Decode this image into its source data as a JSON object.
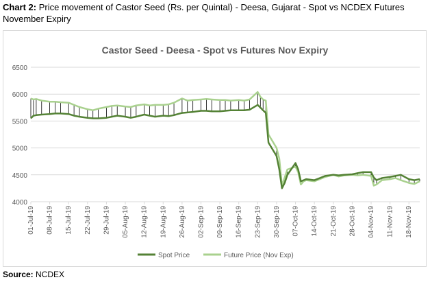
{
  "caption": {
    "label": "Chart 2:",
    "text": "Price movement of Castor Seed (Rs. per Quintal) - Deesa, Gujarat - Spot vs NCDEX Futures November Expiry"
  },
  "source": {
    "label": "Source:",
    "text": "NCDEX"
  },
  "colors": {
    "spot": "#548235",
    "future": "#a9d18e",
    "grid": "#d9d9d9",
    "axis_text": "#595959",
    "title": "#595959"
  },
  "chart_data": {
    "type": "line",
    "title": "Castor Seed - Deesa - Spot vs Futures Nov Expiry",
    "ylim": [
      4000,
      6500
    ],
    "yticks": [
      4000,
      4500,
      5000,
      5500,
      6000,
      6500
    ],
    "grid": true,
    "legend_position": "bottom",
    "xtick_labels": [
      "01-Jul-19",
      "08-Jul-19",
      "15-Jul-19",
      "22-Jul-19",
      "29-Jul-19",
      "05-Aug-19",
      "12-Aug-19",
      "19-Aug-19",
      "26-Aug-19",
      "02-Sep-19",
      "09-Sep-19",
      "16-Sep-19",
      "23-Sep-19",
      "30-Sep-19",
      "07-Oct-19",
      "14-Oct-19",
      "21-Oct-19",
      "28-Oct-19",
      "04-Nov-19",
      "11-Nov-19",
      "18-Nov-19"
    ],
    "x": [
      "01-Jul-19",
      "02-Jul-19",
      "03-Jul-19",
      "05-Jul-19",
      "08-Jul-19",
      "10-Jul-19",
      "12-Jul-19",
      "15-Jul-19",
      "17-Jul-19",
      "19-Jul-19",
      "22-Jul-19",
      "24-Jul-19",
      "26-Jul-19",
      "29-Jul-19",
      "31-Jul-19",
      "02-Aug-19",
      "05-Aug-19",
      "07-Aug-19",
      "09-Aug-19",
      "12-Aug-19",
      "14-Aug-19",
      "16-Aug-19",
      "19-Aug-19",
      "21-Aug-19",
      "23-Aug-19",
      "26-Aug-19",
      "28-Aug-19",
      "30-Aug-19",
      "02-Sep-19",
      "04-Sep-19",
      "06-Sep-19",
      "09-Sep-19",
      "11-Sep-19",
      "13-Sep-19",
      "16-Sep-19",
      "18-Sep-19",
      "20-Sep-19",
      "23-Sep-19",
      "24-Sep-19",
      "25-Sep-19",
      "26-Sep-19",
      "27-Sep-19",
      "30-Sep-19",
      "01-Oct-19",
      "02-Oct-19",
      "03-Oct-19",
      "04-Oct-19",
      "07-Oct-19",
      "08-Oct-19",
      "09-Oct-19",
      "10-Oct-19",
      "11-Oct-19",
      "14-Oct-19",
      "16-Oct-19",
      "18-Oct-19",
      "21-Oct-19",
      "23-Oct-19",
      "25-Oct-19",
      "28-Oct-19",
      "30-Oct-19",
      "01-Nov-19",
      "04-Nov-19",
      "05-Nov-19",
      "06-Nov-19",
      "08-Nov-19",
      "11-Nov-19",
      "13-Nov-19",
      "15-Nov-19",
      "18-Nov-19",
      "20-Nov-19",
      "22-Nov-19"
    ],
    "series": [
      {
        "name": "Spot Price",
        "values": [
          5550,
          5600,
          5610,
          5620,
          5630,
          5640,
          5640,
          5630,
          5600,
          5580,
          5560,
          5550,
          5550,
          5560,
          5580,
          5600,
          5580,
          5560,
          5580,
          5620,
          5600,
          5580,
          5600,
          5590,
          5610,
          5650,
          5660,
          5670,
          5690,
          5690,
          5680,
          5680,
          5690,
          5700,
          5700,
          5700,
          5710,
          5800,
          5750,
          5700,
          5650,
          5100,
          4850,
          4600,
          4250,
          4350,
          4500,
          4720,
          4600,
          4380,
          4400,
          4420,
          4400,
          4440,
          4480,
          4500,
          4490,
          4500,
          4510,
          4530,
          4550,
          4550,
          4450,
          4400,
          4440,
          4460,
          4480,
          4500,
          4420,
          4400,
          4420
        ]
      },
      {
        "name": "Future Price (Nov Exp)",
        "values": [
          5920,
          5900,
          5910,
          5880,
          5860,
          5860,
          5850,
          5840,
          5800,
          5760,
          5720,
          5700,
          5730,
          5760,
          5780,
          5790,
          5770,
          5760,
          5790,
          5810,
          5790,
          5800,
          5800,
          5810,
          5840,
          5920,
          5880,
          5890,
          5900,
          5910,
          5900,
          5890,
          5890,
          5880,
          5890,
          5880,
          5900,
          6040,
          5950,
          5900,
          5880,
          5250,
          5000,
          4800,
          4300,
          4450,
          4600,
          4650,
          4550,
          4320,
          4380,
          4400,
          4380,
          4420,
          4460,
          4500,
          4470,
          4490,
          4500,
          4490,
          4500,
          4480,
          4300,
          4320,
          4400,
          4420,
          4440,
          4400,
          4350,
          4330,
          4380
        ]
      }
    ]
  }
}
